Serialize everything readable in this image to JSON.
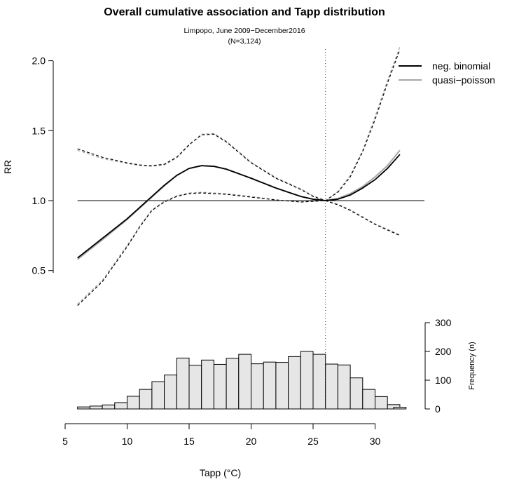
{
  "chart_data": {
    "type": "line",
    "title": "Overall cumulative association and Tapp distribution",
    "subtitle_line1": "Limpopo, June 2009−December2016",
    "subtitle_line2": "(N=3,124)",
    "xlabel": "Tapp (°C)",
    "ylabel": "RR",
    "right_ylabel": "Frequency (n)",
    "xlim": [
      5,
      34
    ],
    "ylim": [
      0.3,
      2.0
    ],
    "x_ticks": [
      5,
      10,
      15,
      20,
      25,
      30
    ],
    "y_ticks": [
      0.5,
      1.0,
      1.5,
      2.0
    ],
    "y_tick_labels": [
      "0.5",
      "1.0",
      "1.5",
      "2.0"
    ],
    "freq_ticks": [
      0,
      100,
      200,
      300
    ],
    "reference_rr": 1.0,
    "reference_temp": 26,
    "legend": {
      "placement": "top-right",
      "entries": [
        {
          "label": "neg. binomial",
          "color": "#000000"
        },
        {
          "label": "quasi−poisson",
          "color": "#a6a6a6"
        }
      ]
    },
    "series": [
      {
        "name": "neg. binomial",
        "color": "#000000",
        "x": [
          6,
          8,
          10,
          11,
          12,
          13,
          14,
          15,
          16,
          17,
          18,
          20,
          22,
          24,
          25,
          26,
          27,
          28,
          29,
          30,
          31,
          32
        ],
        "rr": [
          0.59,
          0.73,
          0.87,
          0.95,
          1.03,
          1.11,
          1.18,
          1.23,
          1.25,
          1.245,
          1.225,
          1.16,
          1.09,
          1.03,
          1.01,
          1.0,
          1.01,
          1.04,
          1.09,
          1.15,
          1.23,
          1.33
        ],
        "lower": [
          0.25,
          0.42,
          0.67,
          0.81,
          0.93,
          0.99,
          1.03,
          1.05,
          1.055,
          1.05,
          1.045,
          1.025,
          1.005,
          0.99,
          0.995,
          1.0,
          0.97,
          0.93,
          0.88,
          0.83,
          0.79,
          0.75
        ],
        "upper": [
          1.37,
          1.31,
          1.27,
          1.255,
          1.25,
          1.26,
          1.31,
          1.4,
          1.47,
          1.475,
          1.42,
          1.27,
          1.16,
          1.08,
          1.03,
          1.0,
          1.06,
          1.17,
          1.35,
          1.58,
          1.84,
          2.08
        ]
      },
      {
        "name": "quasi−poisson",
        "color": "#a6a6a6",
        "x": [
          6,
          8,
          10,
          11,
          12,
          13,
          14,
          15,
          16,
          17,
          18,
          20,
          22,
          24,
          25,
          26,
          27,
          28,
          29,
          30,
          31,
          32
        ],
        "rr": [
          0.58,
          0.72,
          0.865,
          0.945,
          1.025,
          1.105,
          1.18,
          1.23,
          1.25,
          1.245,
          1.225,
          1.16,
          1.09,
          1.03,
          1.01,
          1.0,
          1.015,
          1.05,
          1.1,
          1.17,
          1.25,
          1.36
        ],
        "lower": [
          0.26,
          0.43,
          0.68,
          0.815,
          0.935,
          0.995,
          1.035,
          1.055,
          1.06,
          1.055,
          1.05,
          1.03,
          1.005,
          0.99,
          0.995,
          1.0,
          0.975,
          0.935,
          0.885,
          0.835,
          0.795,
          0.755
        ],
        "upper": [
          1.36,
          1.3,
          1.265,
          1.25,
          1.245,
          1.255,
          1.305,
          1.395,
          1.475,
          1.48,
          1.425,
          1.275,
          1.165,
          1.085,
          1.035,
          1.0,
          1.065,
          1.18,
          1.36,
          1.6,
          1.86,
          2.1
        ]
      }
    ],
    "histogram": {
      "name": "Tapp distribution",
      "bin_width": 1,
      "bin_starts": [
        6,
        7,
        8,
        9,
        10,
        11,
        12,
        13,
        14,
        15,
        16,
        17,
        18,
        19,
        20,
        21,
        22,
        23,
        24,
        25,
        26,
        27,
        28,
        29,
        30,
        31
      ],
      "counts": [
        7,
        10,
        14,
        22,
        44,
        68,
        95,
        118,
        177,
        152,
        170,
        155,
        176,
        190,
        157,
        163,
        162,
        182,
        200,
        190,
        156,
        153,
        108,
        68,
        43,
        15
      ],
      "extra_bin": {
        "start": 31.5,
        "end": 32.5,
        "count": 6
      }
    }
  }
}
